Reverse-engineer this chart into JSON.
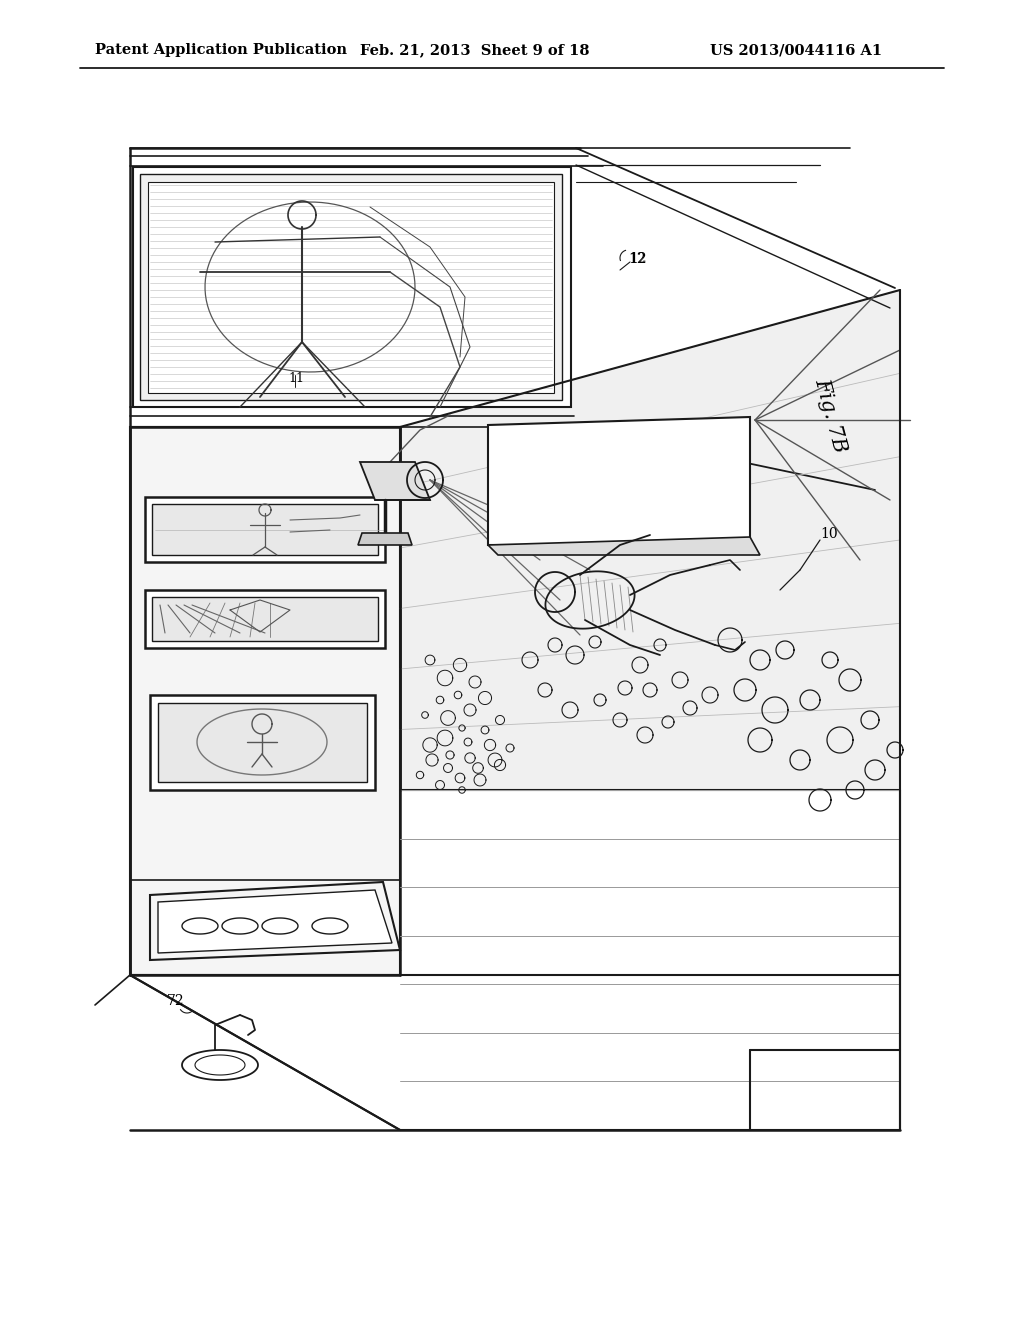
{
  "title_left": "Patent Application Publication",
  "title_center": "Feb. 21, 2013  Sheet 9 of 18",
  "title_right": "US 2013/0044116 A1",
  "fig_label": "Fig. 7B",
  "label_12": "12",
  "label_10": "10",
  "label_72": "72",
  "label_11": "11",
  "bg_color": "#ffffff",
  "line_color": "#1a1a1a",
  "header_fontsize": 10.5,
  "fig_label_fontsize": 15
}
